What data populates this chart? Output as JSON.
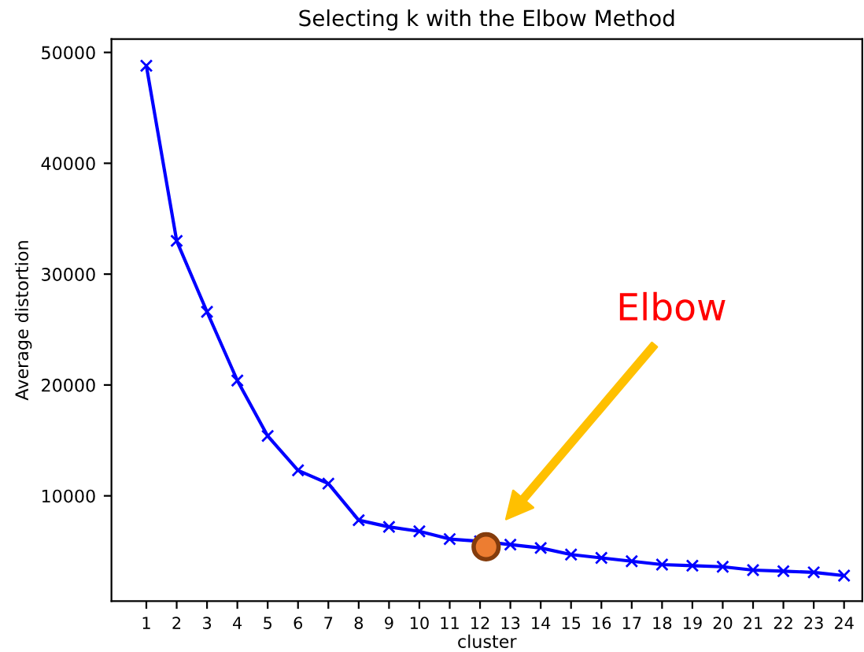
{
  "chart_data": {
    "type": "line",
    "title": "Selecting k with the Elbow Method",
    "xlabel": "cluster",
    "ylabel": "Average distortion",
    "xlim": [
      -0.15,
      24.6
    ],
    "xticks": [
      1,
      2,
      3,
      4,
      5,
      6,
      7,
      8,
      9,
      10,
      11,
      12,
      13,
      14,
      15,
      16,
      17,
      18,
      19,
      20,
      21,
      22,
      23,
      24
    ],
    "ylim": [
      500,
      51200
    ],
    "yticks": [
      10000,
      20000,
      30000,
      40000,
      50000
    ],
    "grid": false,
    "legend": false,
    "series": [
      {
        "color": "#0000ff",
        "marker": "cross",
        "line_style": "solid",
        "x": [
          1,
          2,
          3,
          4,
          5,
          6,
          7,
          8,
          9,
          10,
          11,
          12,
          13,
          14,
          15,
          16,
          17,
          18,
          19,
          20,
          21,
          22,
          23,
          24
        ],
        "values": [
          48800,
          33000,
          26600,
          20400,
          15400,
          12300,
          11100,
          7800,
          7200,
          6800,
          6100,
          5900,
          5600,
          5300,
          4700,
          4400,
          4100,
          3800,
          3700,
          3600,
          3300,
          3200,
          3100,
          2800
        ]
      },
      {
        "type": "scatter",
        "color": "#ed7d31",
        "marker": "circle",
        "x": [
          12.2
        ],
        "values": [
          5400
        ]
      }
    ],
    "annotations": [
      "Elbow"
    ]
  }
}
